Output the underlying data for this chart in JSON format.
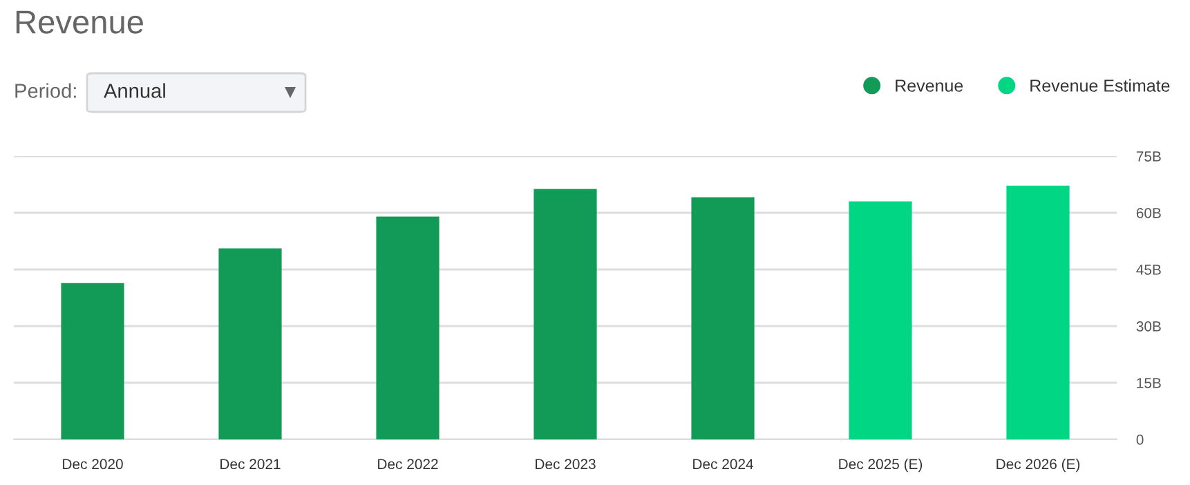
{
  "chart_data": {
    "type": "bar",
    "title": "Revenue",
    "annotations": [
      "Period:",
      "Annual"
    ],
    "categories": [
      "Dec 2020",
      "Dec 2021",
      "Dec 2022",
      "Dec 2023",
      "Dec 2024",
      "Dec 2025 (E)",
      "Dec 2026 (E)"
    ],
    "series": [
      {
        "name": "Revenue",
        "color": "#129b57",
        "values": [
          41.4,
          50.6,
          59.0,
          66.3,
          64.1,
          null,
          null
        ]
      },
      {
        "name": "Revenue Estimate",
        "color": "#00d684",
        "values": [
          null,
          null,
          null,
          null,
          null,
          63.0,
          67.2
        ]
      }
    ],
    "ylim": [
      0,
      75
    ],
    "yticks": [
      0,
      {
        "value": 15,
        "label": "15B"
      },
      {
        "value": 30,
        "label": "30B"
      },
      {
        "value": 45,
        "label": "45B"
      },
      {
        "value": 60,
        "label": "60B"
      },
      {
        "value": 75,
        "label": "75B"
      }
    ],
    "grid": "y",
    "legend": "top right"
  }
}
